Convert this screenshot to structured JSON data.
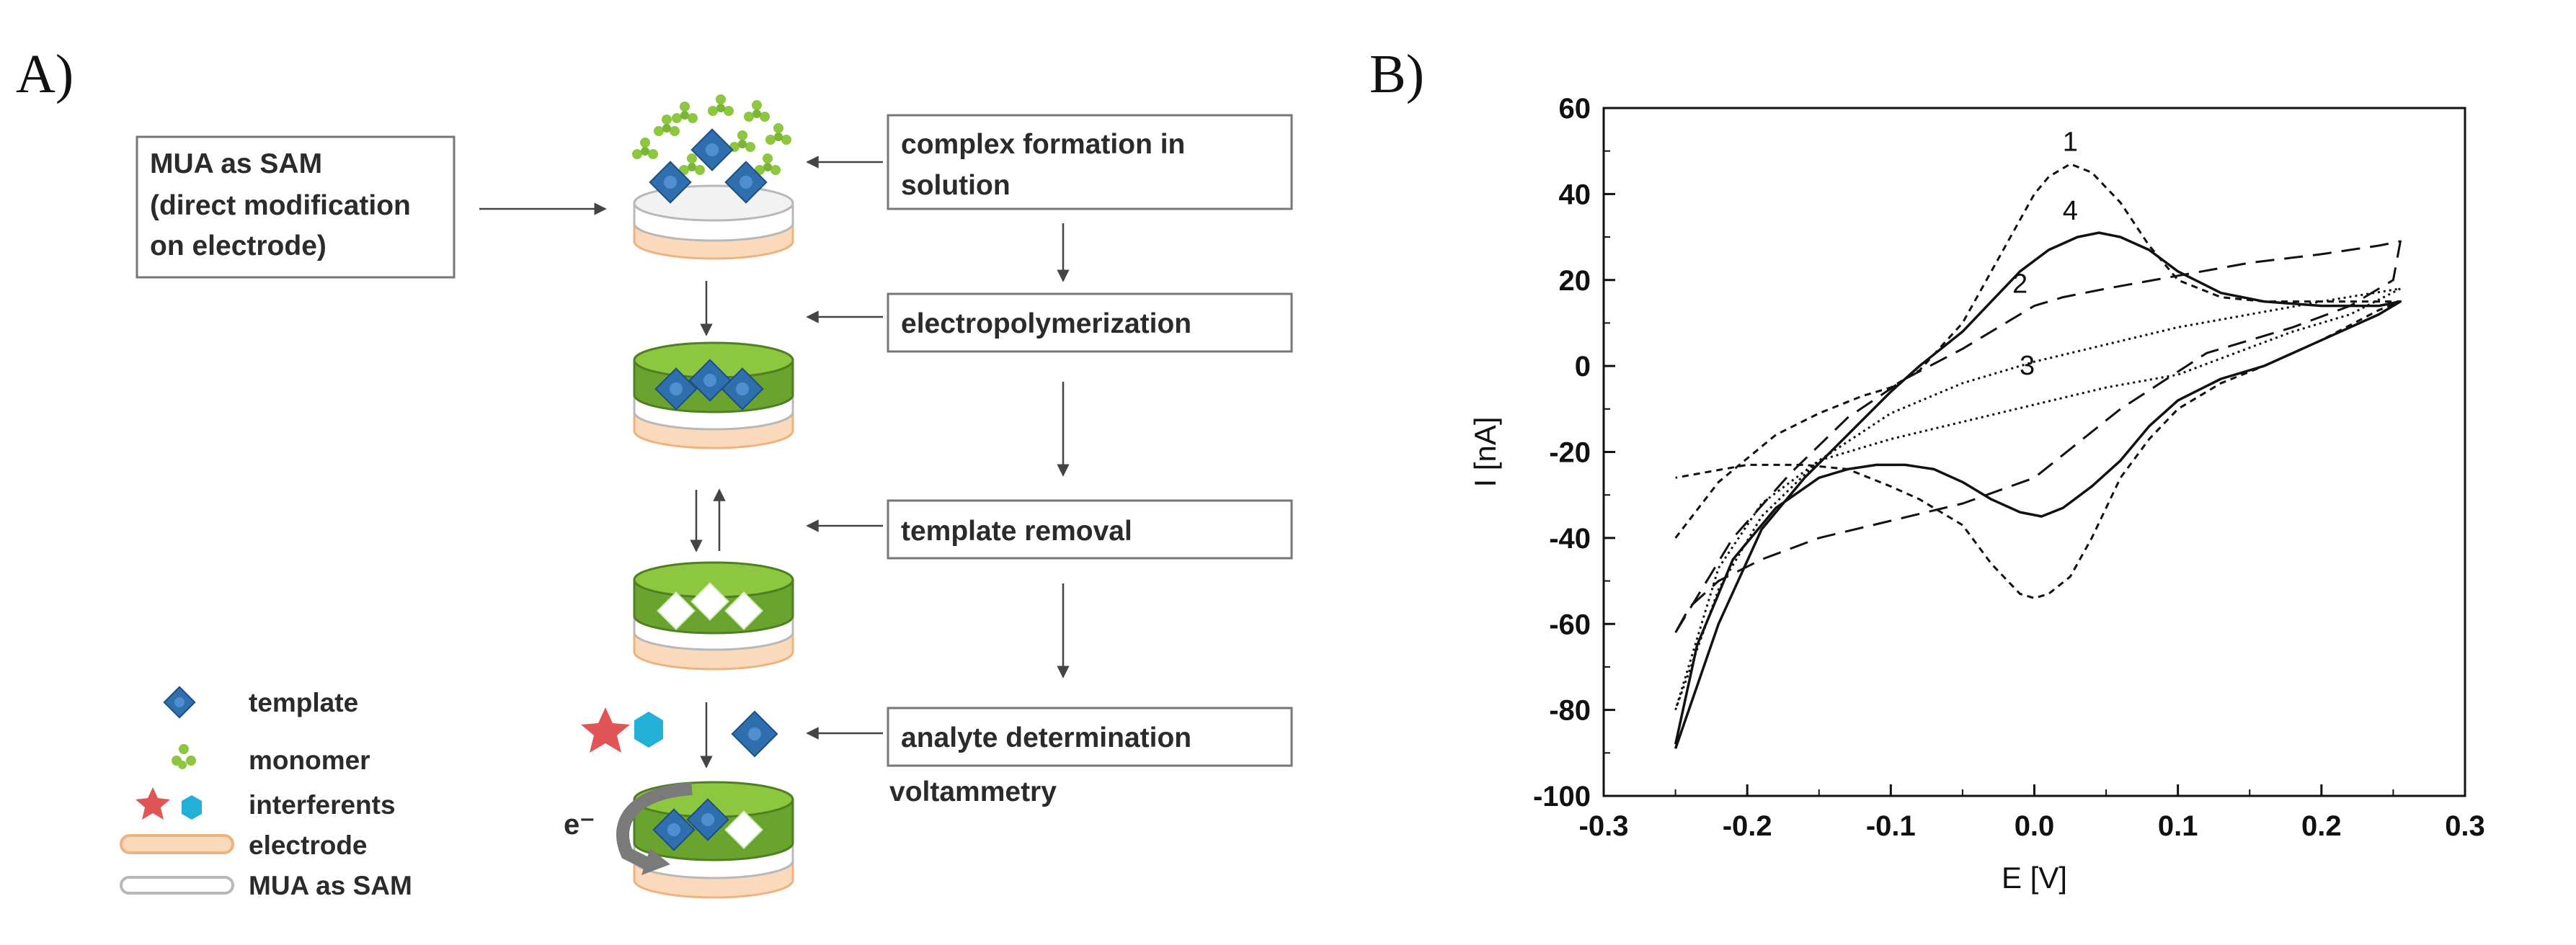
{
  "panel_a": {
    "label": "A)",
    "boxes": {
      "mua": [
        "MUA as SAM",
        "(direct modification",
        "on electrode)"
      ],
      "complex": [
        "complex formation in",
        "solution"
      ],
      "electropoly": [
        "electropolymerization"
      ],
      "template_removal": [
        "template removal"
      ],
      "analyte": [
        "analyte determination"
      ]
    },
    "voltammetry": "voltammetry",
    "electron": "e⁻",
    "legend": {
      "template": "template",
      "monomer": "monomer",
      "interferents": "interferents",
      "electrode": "electrode",
      "mua_sam": "MUA as SAM"
    },
    "colors": {
      "template": "#2f6fae",
      "monomer": "#8dc63f",
      "polymer": "#6aa42f",
      "electrode": "#fbd9bd",
      "electrode_edge": "#f0b27d",
      "interferent_star": "#e05555",
      "interferent_hex": "#22b0d6"
    }
  },
  "panel_b": {
    "label": "B)",
    "chart_data": {
      "type": "line",
      "xlabel": "E [V]",
      "ylabel": "I [nA]",
      "xlim": [
        -0.3,
        0.3
      ],
      "ylim": [
        -100,
        60
      ],
      "xticks": [
        -0.3,
        -0.2,
        -0.1,
        0.0,
        0.1,
        0.2,
        0.3
      ],
      "xtick_labels": [
        "-0.3",
        "-0.2",
        "-0.1",
        "0.0",
        "0.1",
        "0.2",
        "0.3"
      ],
      "yticks": [
        -100,
        -80,
        -60,
        -40,
        -20,
        0,
        20,
        40,
        60
      ],
      "ytick_labels": [
        "-100",
        "-80",
        "-60",
        "-40",
        "-20",
        "0",
        "20",
        "40",
        "60"
      ],
      "grid": false,
      "legend": "none",
      "series": [
        {
          "name": "1",
          "style": "short-dash",
          "label_at": [
            0.025,
            50
          ],
          "x": [
            -0.25,
            -0.22,
            -0.18,
            -0.15,
            -0.12,
            -0.1,
            -0.08,
            -0.05,
            -0.03,
            -0.01,
            0.0,
            0.01,
            0.025,
            0.04,
            0.06,
            0.08,
            0.1,
            0.13,
            0.16,
            0.2,
            0.24,
            0.255,
            0.24,
            0.2,
            0.16,
            0.13,
            0.1,
            0.08,
            0.06,
            0.04,
            0.025,
            0.01,
            0.0,
            -0.01,
            -0.03,
            -0.05,
            -0.08,
            -0.1,
            -0.13,
            -0.16,
            -0.2,
            -0.25
          ],
          "y": [
            -40,
            -27,
            -16,
            -11,
            -7,
            -5,
            -1,
            10,
            22,
            34,
            40,
            44,
            47,
            45,
            38,
            28,
            20,
            16,
            15,
            15,
            15,
            15,
            13,
            6,
            0,
            -4,
            -10,
            -17,
            -26,
            -40,
            -49,
            -53,
            -54,
            -53,
            -46,
            -37,
            -31,
            -28,
            -24,
            -23,
            -23,
            -26
          ]
        },
        {
          "name": "4",
          "style": "solid",
          "label_at": [
            0.025,
            34
          ],
          "x": [
            -0.25,
            -0.22,
            -0.19,
            -0.16,
            -0.13,
            -0.1,
            -0.08,
            -0.05,
            -0.03,
            -0.01,
            0.01,
            0.03,
            0.045,
            0.06,
            0.08,
            0.1,
            0.13,
            0.16,
            0.2,
            0.24,
            0.255,
            0.24,
            0.2,
            0.16,
            0.13,
            0.1,
            0.08,
            0.06,
            0.04,
            0.02,
            0.005,
            -0.01,
            -0.03,
            -0.05,
            -0.07,
            -0.09,
            -0.11,
            -0.13,
            -0.15,
            -0.18,
            -0.21,
            -0.235,
            -0.25
          ],
          "y": [
            -89,
            -60,
            -38,
            -26,
            -16,
            -6,
            0,
            8,
            15,
            22,
            27,
            30,
            31,
            30,
            27,
            22,
            17,
            15,
            14,
            14,
            15,
            12,
            6,
            0,
            -3,
            -8,
            -14,
            -22,
            -28,
            -33,
            -35,
            -34,
            -31,
            -27,
            -24,
            -23,
            -23,
            -24,
            -26,
            -33,
            -45,
            -65,
            -88
          ]
        },
        {
          "name": "2",
          "style": "long-dash",
          "label_at": [
            -0.01,
            17
          ],
          "x": [
            -0.25,
            -0.21,
            -0.17,
            -0.13,
            -0.09,
            -0.05,
            -0.02,
            0.0,
            0.02,
            0.05,
            0.1,
            0.15,
            0.2,
            0.24,
            0.255,
            0.25,
            0.22,
            0.18,
            0.12,
            0.06,
            0.0,
            -0.05,
            -0.1,
            -0.15,
            -0.19,
            -0.22,
            -0.24,
            -0.25
          ],
          "y": [
            -62,
            -40,
            -25,
            -12,
            -3,
            4,
            10,
            14,
            16,
            18,
            21,
            24,
            26,
            28,
            29,
            20,
            14,
            9,
            3,
            -10,
            -26,
            -32,
            -36,
            -40,
            -45,
            -50,
            -56,
            -62
          ]
        },
        {
          "name": "3",
          "style": "dotted",
          "label_at": [
            -0.005,
            -2
          ],
          "x": [
            -0.25,
            -0.22,
            -0.19,
            -0.15,
            -0.1,
            -0.05,
            0.0,
            0.05,
            0.1,
            0.15,
            0.2,
            0.255,
            0.22,
            0.18,
            0.14,
            0.1,
            0.05,
            0.0,
            -0.05,
            -0.1,
            -0.15,
            -0.19,
            -0.22,
            -0.25
          ],
          "y": [
            -80,
            -52,
            -35,
            -22,
            -11,
            -4,
            1,
            5,
            9,
            12,
            15,
            18,
            12,
            8,
            3,
            -2,
            -5,
            -9,
            -13,
            -17,
            -22,
            -32,
            -47,
            -80
          ]
        }
      ]
    }
  }
}
